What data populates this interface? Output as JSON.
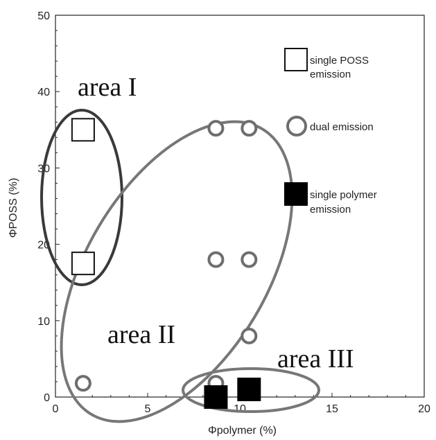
{
  "chart_data": {
    "type": "scatter",
    "xlabel": "Φpolymer (%)",
    "ylabel": "ΦPOSS (%)",
    "xlim": [
      0,
      20
    ],
    "ylim": [
      0,
      50
    ],
    "xticks": [
      "0",
      "5",
      "10",
      "15",
      "20"
    ],
    "yticks": [
      "0",
      "10",
      "20",
      "30",
      "40",
      "50"
    ],
    "grid": false,
    "legend_position": "right",
    "series": [
      {
        "name": "single POSS emission",
        "marker": "open-square",
        "color": "#111111",
        "points": [
          [
            1.5,
            35.0
          ],
          [
            1.5,
            17.5
          ]
        ]
      },
      {
        "name": "dual emission",
        "marker": "open-circle",
        "color": "#6e6e6e",
        "points": [
          [
            8.7,
            35.2
          ],
          [
            10.5,
            35.2
          ],
          [
            8.7,
            18.0
          ],
          [
            10.5,
            18.0
          ],
          [
            10.5,
            8.0
          ],
          [
            1.5,
            1.8
          ],
          [
            8.7,
            1.8
          ]
        ]
      },
      {
        "name": "single polymer emission",
        "marker": "filled-square",
        "color": "#000000",
        "points": [
          [
            8.7,
            0.0
          ],
          [
            10.5,
            1.0
          ]
        ]
      }
    ],
    "annotations": [
      {
        "text": "area I",
        "x": 1.5,
        "y": 26.0
      },
      {
        "text": "area II",
        "x": 7.0,
        "y": 14.0
      },
      {
        "text": "area III",
        "x": 10.0,
        "y": 1.5
      }
    ],
    "legend": [
      {
        "label_line1": "single POSS",
        "label_line2": "emission"
      },
      {
        "label_line1": "dual emission",
        "label_line2": ""
      },
      {
        "label_line1": "single polymer",
        "label_line2": "emission"
      }
    ],
    "area_labels": [
      "area I",
      "area II",
      "area III"
    ]
  }
}
